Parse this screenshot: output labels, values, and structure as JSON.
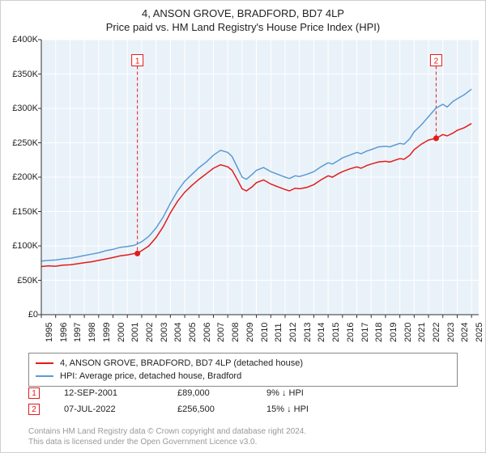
{
  "title": "4, ANSON GROVE, BRADFORD, BD7 4LP",
  "subtitle": "Price paid vs. HM Land Registry's House Price Index (HPI)",
  "chart": {
    "type": "line",
    "plot_background": "#eaf2f9",
    "grid_color": "#ffffff",
    "axis_color": "#333333",
    "xlim": [
      1995,
      2025.5
    ],
    "ylim": [
      0,
      400000
    ],
    "ytick_step": 50000,
    "ytick_labels": [
      "£0",
      "£50K",
      "£100K",
      "£150K",
      "£200K",
      "£250K",
      "£300K",
      "£350K",
      "£400K"
    ],
    "xtick_step": 1,
    "xtick_labels": [
      "1995",
      "1996",
      "1997",
      "1998",
      "1999",
      "2000",
      "2001",
      "2002",
      "2003",
      "2004",
      "2005",
      "2006",
      "2007",
      "2008",
      "2009",
      "2010",
      "2011",
      "2012",
      "2013",
      "2014",
      "2015",
      "2016",
      "2017",
      "2018",
      "2019",
      "2020",
      "2021",
      "2022",
      "2023",
      "2024",
      "2025"
    ],
    "series": [
      {
        "name": "4, ANSON GROVE, BRADFORD, BD7 4LP (detached house)",
        "color": "#e21b1b",
        "line_width": 1.5,
        "data": [
          [
            1995,
            70000
          ],
          [
            1995.5,
            71000
          ],
          [
            1996,
            70500
          ],
          [
            1996.5,
            72000
          ],
          [
            1997,
            72500
          ],
          [
            1997.5,
            74000
          ],
          [
            1998,
            75500
          ],
          [
            1998.5,
            77000
          ],
          [
            1999,
            79000
          ],
          [
            1999.5,
            81000
          ],
          [
            2000,
            83000
          ],
          [
            2000.5,
            85500
          ],
          [
            2001,
            87000
          ],
          [
            2001.5,
            89000
          ],
          [
            2001.7,
            89000
          ],
          [
            2002,
            93000
          ],
          [
            2002.5,
            100000
          ],
          [
            2003,
            112000
          ],
          [
            2003.5,
            128000
          ],
          [
            2004,
            148000
          ],
          [
            2004.5,
            165000
          ],
          [
            2005,
            178000
          ],
          [
            2005.5,
            188000
          ],
          [
            2006,
            197000
          ],
          [
            2006.5,
            205000
          ],
          [
            2007,
            213000
          ],
          [
            2007.5,
            218000
          ],
          [
            2008,
            215000
          ],
          [
            2008.3,
            210000
          ],
          [
            2008.7,
            195000
          ],
          [
            2009,
            183000
          ],
          [
            2009.3,
            180000
          ],
          [
            2009.7,
            186000
          ],
          [
            2010,
            192000
          ],
          [
            2010.5,
            196000
          ],
          [
            2011,
            190000
          ],
          [
            2011.5,
            186000
          ],
          [
            2012,
            182000
          ],
          [
            2012.3,
            180000
          ],
          [
            2012.7,
            184000
          ],
          [
            2013,
            183000
          ],
          [
            2013.5,
            185000
          ],
          [
            2014,
            189000
          ],
          [
            2014.5,
            196000
          ],
          [
            2015,
            202000
          ],
          [
            2015.3,
            200000
          ],
          [
            2015.7,
            205000
          ],
          [
            2016,
            208000
          ],
          [
            2016.5,
            212000
          ],
          [
            2017,
            215000
          ],
          [
            2017.3,
            213000
          ],
          [
            2017.7,
            217000
          ],
          [
            2018,
            219000
          ],
          [
            2018.5,
            222000
          ],
          [
            2019,
            223000
          ],
          [
            2019.3,
            222000
          ],
          [
            2019.7,
            225000
          ],
          [
            2020,
            227000
          ],
          [
            2020.3,
            226000
          ],
          [
            2020.7,
            232000
          ],
          [
            2021,
            240000
          ],
          [
            2021.5,
            248000
          ],
          [
            2022,
            254000
          ],
          [
            2022.5,
            256500
          ],
          [
            2022.53,
            256500
          ],
          [
            2023,
            262000
          ],
          [
            2023.3,
            260000
          ],
          [
            2023.7,
            264000
          ],
          [
            2024,
            268000
          ],
          [
            2024.5,
            272000
          ],
          [
            2025,
            278000
          ]
        ]
      },
      {
        "name": "HPI: Average price, detached house, Bradford",
        "color": "#5b9bd5",
        "line_width": 1.5,
        "data": [
          [
            1995,
            78000
          ],
          [
            1995.5,
            79000
          ],
          [
            1996,
            79500
          ],
          [
            1996.5,
            81000
          ],
          [
            1997,
            82000
          ],
          [
            1997.5,
            84000
          ],
          [
            1998,
            86000
          ],
          [
            1998.5,
            88000
          ],
          [
            1999,
            90000
          ],
          [
            1999.5,
            93000
          ],
          [
            2000,
            95000
          ],
          [
            2000.5,
            98000
          ],
          [
            2001,
            99000
          ],
          [
            2001.5,
            101000
          ],
          [
            2002,
            106000
          ],
          [
            2002.5,
            114000
          ],
          [
            2003,
            126000
          ],
          [
            2003.5,
            142000
          ],
          [
            2004,
            162000
          ],
          [
            2004.5,
            180000
          ],
          [
            2005,
            194000
          ],
          [
            2005.5,
            204000
          ],
          [
            2006,
            214000
          ],
          [
            2006.5,
            222000
          ],
          [
            2007,
            232000
          ],
          [
            2007.5,
            239000
          ],
          [
            2008,
            236000
          ],
          [
            2008.3,
            230000
          ],
          [
            2008.7,
            213000
          ],
          [
            2009,
            200000
          ],
          [
            2009.3,
            197000
          ],
          [
            2009.7,
            204000
          ],
          [
            2010,
            210000
          ],
          [
            2010.5,
            214000
          ],
          [
            2011,
            208000
          ],
          [
            2011.5,
            204000
          ],
          [
            2012,
            200000
          ],
          [
            2012.3,
            198000
          ],
          [
            2012.7,
            202000
          ],
          [
            2013,
            201000
          ],
          [
            2013.5,
            204000
          ],
          [
            2014,
            208000
          ],
          [
            2014.5,
            215000
          ],
          [
            2015,
            221000
          ],
          [
            2015.3,
            219000
          ],
          [
            2015.7,
            224000
          ],
          [
            2016,
            228000
          ],
          [
            2016.5,
            232000
          ],
          [
            2017,
            236000
          ],
          [
            2017.3,
            234000
          ],
          [
            2017.7,
            238000
          ],
          [
            2018,
            240000
          ],
          [
            2018.5,
            244000
          ],
          [
            2019,
            245000
          ],
          [
            2019.3,
            244000
          ],
          [
            2019.7,
            247000
          ],
          [
            2020,
            249000
          ],
          [
            2020.3,
            248000
          ],
          [
            2020.7,
            256000
          ],
          [
            2021,
            266000
          ],
          [
            2021.5,
            276000
          ],
          [
            2022,
            288000
          ],
          [
            2022.5,
            300000
          ],
          [
            2023,
            306000
          ],
          [
            2023.3,
            302000
          ],
          [
            2023.7,
            310000
          ],
          [
            2024,
            314000
          ],
          [
            2024.5,
            320000
          ],
          [
            2025,
            328000
          ]
        ]
      }
    ],
    "markers": [
      {
        "label": "1",
        "x": 2001.7,
        "y": 89000,
        "line_color": "#e21b1b",
        "line_dash": "4,3"
      },
      {
        "label": "2",
        "x": 2022.53,
        "y": 256500,
        "line_color": "#e21b1b",
        "line_dash": "4,3"
      }
    ],
    "marker_box_top_y": 370000,
    "marker_dot_color": "#e21b1b",
    "marker_dot_radius": 3.5
  },
  "legend": {
    "items": [
      {
        "color": "#e21b1b",
        "label": "4, ANSON GROVE, BRADFORD, BD7 4LP (detached house)"
      },
      {
        "color": "#5b9bd5",
        "label": "HPI: Average price, detached house, Bradford"
      }
    ]
  },
  "marker_rows": [
    {
      "label": "1",
      "border_color": "#e21b1b",
      "date": "12-SEP-2001",
      "price": "£89,000",
      "diff": "9% ↓ HPI"
    },
    {
      "label": "2",
      "border_color": "#e21b1b",
      "date": "07-JUL-2022",
      "price": "£256,500",
      "diff": "15% ↓ HPI"
    }
  ],
  "marker_row_col_widths": {
    "date": 140,
    "price": 110,
    "diff": 120
  },
  "footer": {
    "line1": "Contains HM Land Registry data © Crown copyright and database right 2024.",
    "line2": "This data is licensed under the Open Government Licence v3.0."
  }
}
